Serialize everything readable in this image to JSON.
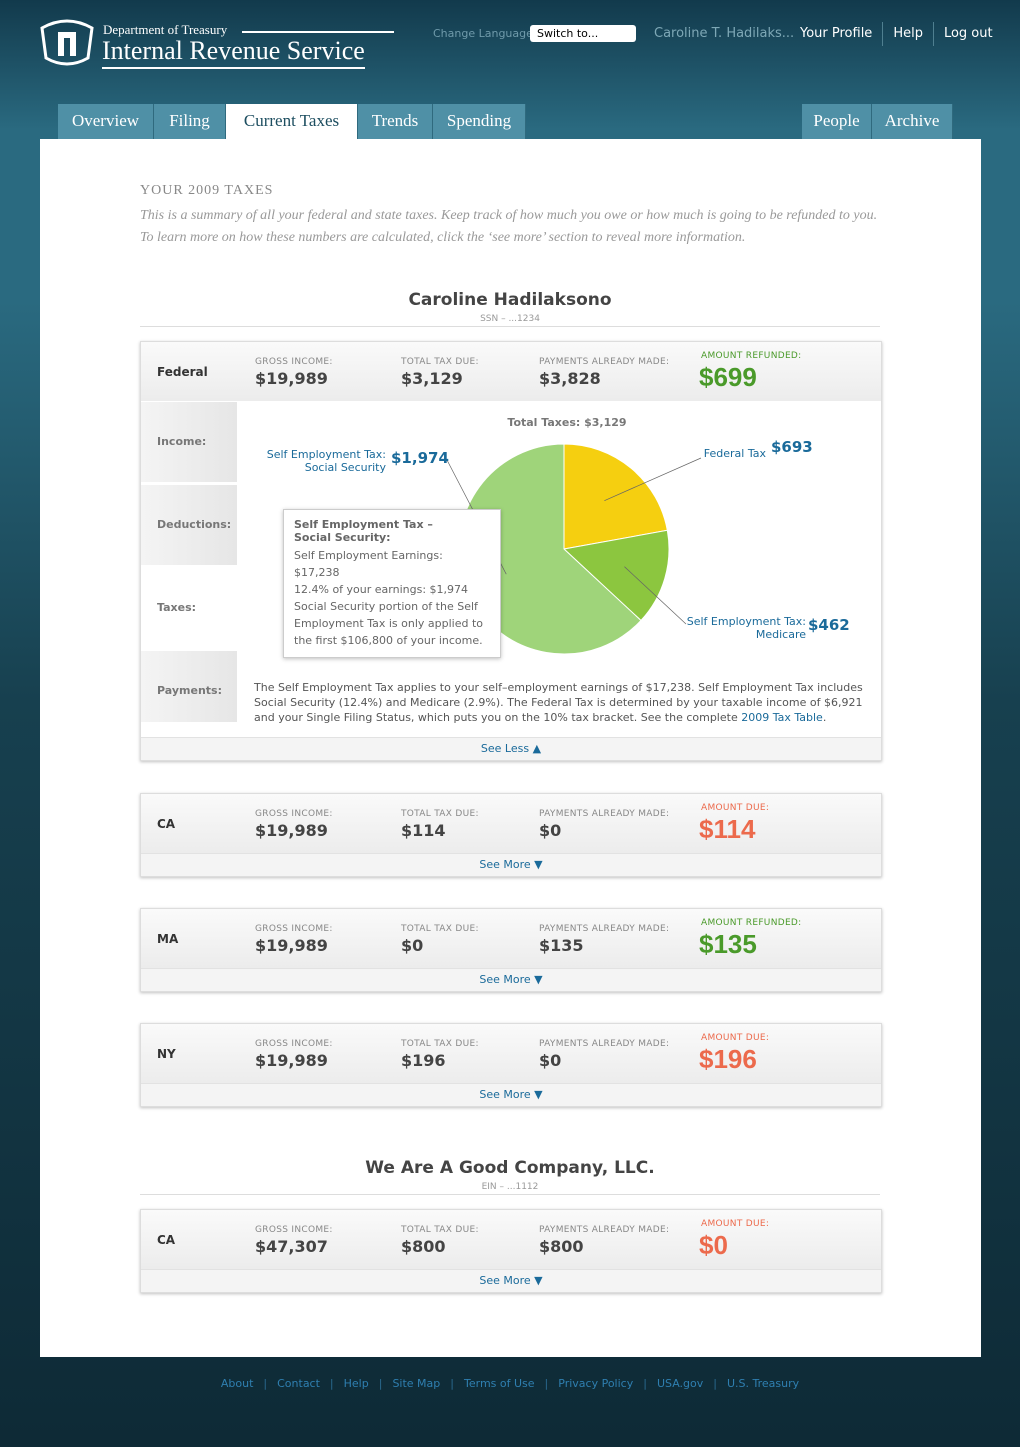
{
  "header": {
    "department": "Department of Treasury",
    "agency": "Internal Revenue Service",
    "language_label": "Change Language",
    "language_select": "Switch to...",
    "user": "Caroline T. Hadilaks...",
    "links": [
      "Your Profile",
      "Help",
      "Log out"
    ]
  },
  "nav": {
    "left": [
      "Overview",
      "Filing",
      "Current Taxes",
      "Trends",
      "Spending"
    ],
    "right": [
      "People",
      "Archive"
    ],
    "active_index": 2
  },
  "intro": {
    "title": "YOUR 2009 TAXES",
    "text": "This is a summary of all your federal and state taxes. Keep track of how much you owe or how much is going to be refunded to you. To learn more on how these numbers are calculated, click the ‘see more’ section to reveal more information."
  },
  "field_labels": [
    "GROSS INCOME:",
    "TOTAL TAX DUE:",
    "PAYMENTS ALREADY MADE:"
  ],
  "sections": [
    {
      "name": "Caroline Hadilaksono",
      "id": "SSN – ...1234",
      "rows": [
        {
          "jurisdiction": "Federal",
          "values": [
            "$19,989",
            "$3,129",
            "$3,828"
          ],
          "amount_label": "AMOUNT REFUNDED:",
          "amount": "$699",
          "amount_color": "#4a9a2a",
          "toggle": "See Less ▲"
        },
        {
          "jurisdiction": "CA",
          "values": [
            "$19,989",
            "$114",
            "$0"
          ],
          "amount_label": "AMOUNT DUE:",
          "amount": "$114",
          "amount_color": "#ec6a4c",
          "toggle": "See More ▼"
        },
        {
          "jurisdiction": "MA",
          "values": [
            "$19,989",
            "$0",
            "$135"
          ],
          "amount_label": "AMOUNT REFUNDED:",
          "amount": "$135",
          "amount_color": "#4a9a2a",
          "toggle": "See More ▼"
        },
        {
          "jurisdiction": "NY",
          "values": [
            "$19,989",
            "$196",
            "$0"
          ],
          "amount_label": "AMOUNT DUE:",
          "amount": "$196",
          "amount_color": "#ec6a4c",
          "toggle": "See More ▼"
        }
      ]
    },
    {
      "name": "We Are A Good Company, LLC.",
      "id": "EIN – ...1112",
      "rows": [
        {
          "jurisdiction": "CA",
          "values": [
            "$47,307",
            "$800",
            "$800"
          ],
          "amount_label": "AMOUNT DUE:",
          "amount": "$0",
          "amount_color": "#ec6a4c",
          "toggle": "See More ▼"
        }
      ]
    }
  ],
  "details": {
    "side_tabs": [
      "Income:",
      "Deductions:",
      "Taxes:",
      "Payments:"
    ],
    "active_side": 2,
    "pie": {
      "type": "pie",
      "title": "Total Taxes: $3,129",
      "categories": [
        "Federal Tax",
        "Self Employment Tax: Medicare",
        "Self Employment Tax: Social Security"
      ],
      "values": [
        693,
        462,
        1974
      ],
      "value_labels": [
        "$693",
        "$462",
        "$1,974"
      ],
      "colors": [
        "#f5cf10",
        "#8cc63f",
        "#9fd47a"
      ]
    },
    "tooltip": {
      "title": "Self Employment Tax – Social Security:",
      "lines": [
        "Self Employment Earnings: $17,238",
        "12.4% of your earnings: $1,974",
        "Social Security portion of the Self Employment Tax is only applied to the first $106,800 of your income."
      ]
    },
    "note": {
      "text": "The Self Employment Tax applies to your self–employment earnings of $17,238. Self Employment Tax includes Social Security (12.4%) and Medicare (2.9%). The Federal Tax is determined by your taxable income of $6,921 and your Single Filing Status, which puts you on the 10% tax bracket. See the complete ",
      "link": "2009 Tax Table",
      "end": "."
    }
  },
  "footer": [
    "About",
    "Contact",
    "Help",
    "Site Map",
    "Terms of Use",
    "Privacy Policy",
    "USA.gov",
    "U.S. Treasury"
  ]
}
